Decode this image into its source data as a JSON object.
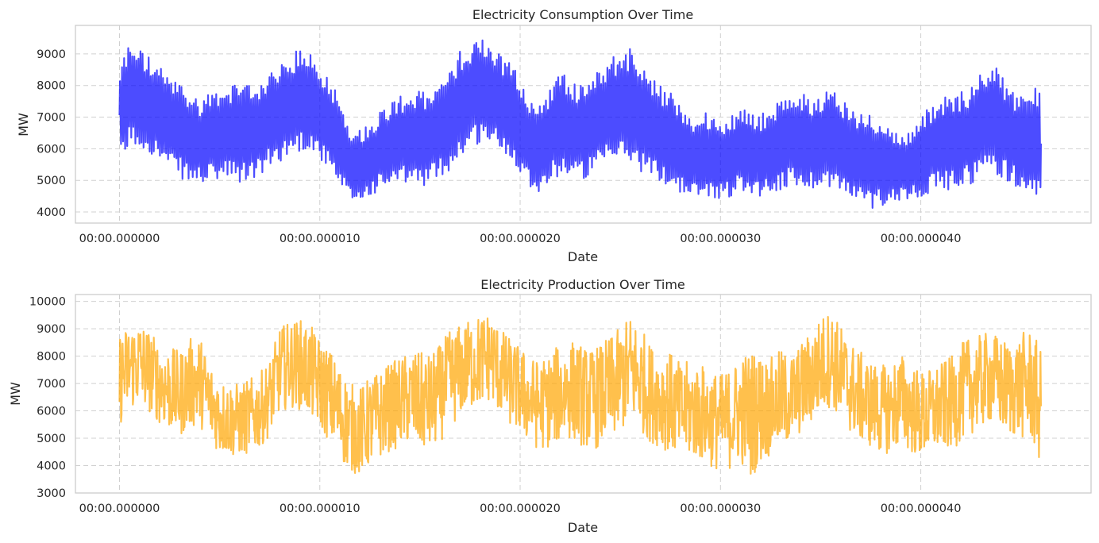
{
  "chart_data": [
    {
      "type": "line",
      "title": "Electricity Consumption Over Time",
      "xlabel": "Date",
      "ylabel": "MW",
      "x_tick_labels": [
        "00:00.000000",
        "00:00.000010",
        "00:00.000020",
        "00:00.000030",
        "00:00.000040"
      ],
      "x_ticks": [
        0,
        10,
        20,
        30,
        40
      ],
      "xlim": [
        -2.2,
        48.5
      ],
      "ylim": [
        3650,
        9900
      ],
      "y_ticks": [
        4000,
        5000,
        6000,
        7000,
        8000,
        9000
      ],
      "grid": true,
      "color": "#0000ff",
      "series": [
        {
          "x": [
            0,
            0.5,
            1,
            1.5,
            2,
            2.5,
            3,
            3.5,
            4,
            4.5,
            5,
            5.5,
            6,
            6.5,
            7,
            7.5,
            8,
            8.5,
            9,
            9.5,
            10,
            10.5,
            11,
            11.5,
            12,
            12.5,
            13,
            13.5,
            14,
            14.5,
            15,
            15.5,
            16,
            16.5,
            17,
            17.5,
            18,
            18.5,
            19,
            19.5,
            20,
            20.5,
            21,
            21.5,
            22,
            22.5,
            23,
            23.5,
            24,
            24.5,
            25,
            25.5,
            26,
            26.5,
            27,
            27.5,
            28,
            28.5,
            29,
            29.5,
            30,
            30.5,
            31,
            31.5,
            32,
            32.5,
            33,
            33.5,
            34,
            34.5,
            35,
            35.5,
            36,
            36.5,
            37,
            37.5,
            38,
            38.5,
            39,
            39.5,
            40,
            40.5,
            41,
            41.5,
            42,
            42.5,
            43,
            43.5,
            44,
            44.5,
            45,
            45.5,
            46
          ],
          "high": [
            8600,
            9450,
            9200,
            8900,
            8600,
            8300,
            8100,
            7800,
            7600,
            7800,
            8000,
            8100,
            7900,
            8100,
            8200,
            8400,
            8600,
            8900,
            9200,
            9050,
            8600,
            8300,
            7600,
            6800,
            6600,
            6900,
            7200,
            7500,
            7700,
            7900,
            7800,
            7800,
            8100,
            8500,
            9100,
            9400,
            9600,
            9350,
            9000,
            8800,
            8300,
            7500,
            7400,
            8000,
            8500,
            8200,
            8000,
            8300,
            8700,
            8900,
            9100,
            9200,
            8700,
            8400,
            8000,
            7800,
            7500,
            7000,
            7200,
            7100,
            6900,
            7000,
            7300,
            7200,
            7100,
            7300,
            7500,
            7700,
            7800,
            7600,
            7800,
            7900,
            7700,
            7300,
            7200,
            7100,
            6900,
            6700,
            6400,
            6600,
            7000,
            7400,
            7600,
            7700,
            7800,
            8000,
            8400,
            8800,
            8400,
            7900,
            7700,
            7900,
            8000
          ],
          "low": [
            5300,
            6100,
            6000,
            5900,
            5600,
            5300,
            5100,
            4900,
            4900,
            4900,
            5000,
            5000,
            4900,
            5000,
            5100,
            5400,
            5600,
            5800,
            5900,
            6000,
            5700,
            5200,
            4700,
            4300,
            4300,
            4500,
            4700,
            4800,
            4800,
            4900,
            4800,
            4900,
            5100,
            5300,
            5700,
            6000,
            6200,
            6200,
            5900,
            5700,
            5300,
            4800,
            4600,
            4900,
            5200,
            5100,
            5000,
            5100,
            5300,
            5500,
            5600,
            5500,
            5300,
            5100,
            4900,
            4800,
            4600,
            4400,
            4400,
            4500,
            4400,
            4500,
            4700,
            4600,
            4500,
            4600,
            4700,
            4800,
            4800,
            4700,
            4800,
            4800,
            4600,
            4400,
            4200,
            4100,
            4200,
            4300,
            4400,
            4400,
            4500,
            4600,
            4700,
            4700,
            4800,
            4900,
            5100,
            5300,
            5100,
            4900,
            4700,
            4600,
            4100
          ]
        }
      ]
    },
    {
      "type": "line",
      "title": "Electricity Production Over Time",
      "xlabel": "Date",
      "ylabel": "MW",
      "x_tick_labels": [
        "00:00.000000",
        "00:00.000010",
        "00:00.000020",
        "00:00.000030",
        "00:00.000040"
      ],
      "x_ticks": [
        0,
        10,
        20,
        30,
        40
      ],
      "xlim": [
        -2.2,
        48.5
      ],
      "ylim": [
        3000,
        10250
      ],
      "y_ticks": [
        3000,
        4000,
        5000,
        6000,
        7000,
        8000,
        9000,
        10000
      ],
      "grid": true,
      "color": "#ffa500",
      "series": [
        {
          "x": [
            0,
            0.5,
            1,
            1.5,
            2,
            2.5,
            3,
            3.5,
            4,
            4.5,
            5,
            5.5,
            6,
            6.5,
            7,
            7.5,
            8,
            8.5,
            9,
            9.5,
            10,
            10.5,
            11,
            11.5,
            12,
            12.5,
            13,
            13.5,
            14,
            14.5,
            15,
            15.5,
            16,
            16.5,
            17,
            17.5,
            18,
            18.5,
            19,
            19.5,
            20,
            20.5,
            21,
            21.5,
            22,
            22.5,
            23,
            23.5,
            24,
            24.5,
            25,
            25.5,
            26,
            26.5,
            27,
            27.5,
            28,
            28.5,
            29,
            29.5,
            30,
            30.5,
            31,
            31.5,
            32,
            32.5,
            33,
            33.5,
            34,
            34.5,
            35,
            35.5,
            36,
            36.5,
            37,
            37.5,
            38,
            38.5,
            39,
            39.5,
            40,
            40.5,
            41,
            41.5,
            42,
            42.5,
            43,
            43.5,
            44,
            44.5,
            45,
            45.5,
            46
          ],
          "high": [
            9000,
            9300,
            9500,
            9100,
            8600,
            8500,
            8300,
            8800,
            8900,
            8000,
            7300,
            7200,
            7100,
            7300,
            7500,
            8000,
            9200,
            9400,
            9500,
            9300,
            8800,
            8400,
            7800,
            7200,
            7000,
            7400,
            7600,
            7900,
            8100,
            8300,
            8300,
            8200,
            8600,
            9100,
            9300,
            9500,
            9700,
            9800,
            9200,
            8800,
            8500,
            8100,
            8000,
            8300,
            8600,
            8800,
            8600,
            8400,
            8600,
            8900,
            9200,
            9700,
            9300,
            8600,
            8500,
            8300,
            7900,
            8000,
            7900,
            7700,
            7500,
            7800,
            8200,
            8500,
            8300,
            8100,
            8400,
            8200,
            8600,
            9100,
            9600,
            9900,
            9300,
            8700,
            8300,
            8000,
            7800,
            7900,
            8300,
            7900,
            7600,
            7700,
            7900,
            8100,
            8600,
            8900,
            8900,
            9100,
            8800,
            8700,
            9000,
            9200,
            8400
          ],
          "low": [
            5300,
            5900,
            6000,
            5800,
            5400,
            5100,
            4900,
            5200,
            5300,
            4800,
            4300,
            4200,
            4200,
            4300,
            4500,
            5000,
            5800,
            6000,
            5900,
            5600,
            5200,
            4700,
            4100,
            3600,
            3500,
            3800,
            4100,
            4400,
            4500,
            4600,
            4400,
            4300,
            4700,
            5200,
            5600,
            5900,
            6000,
            6200,
            5700,
            5300,
            5000,
            4600,
            4400,
            4500,
            4700,
            4800,
            4600,
            4400,
            4500,
            4700,
            5000,
            5400,
            5100,
            4700,
            4500,
            4300,
            4000,
            4100,
            4000,
            3800,
            3600,
            3700,
            3900,
            3300,
            3900,
            4200,
            4500,
            4600,
            5000,
            5300,
            5700,
            6000,
            5500,
            5000,
            4700,
            4500,
            4300,
            4300,
            4500,
            4300,
            4100,
            4200,
            4400,
            4400,
            4700,
            5000,
            5200,
            5400,
            5100,
            4900,
            4800,
            4700,
            3700
          ]
        }
      ]
    }
  ]
}
